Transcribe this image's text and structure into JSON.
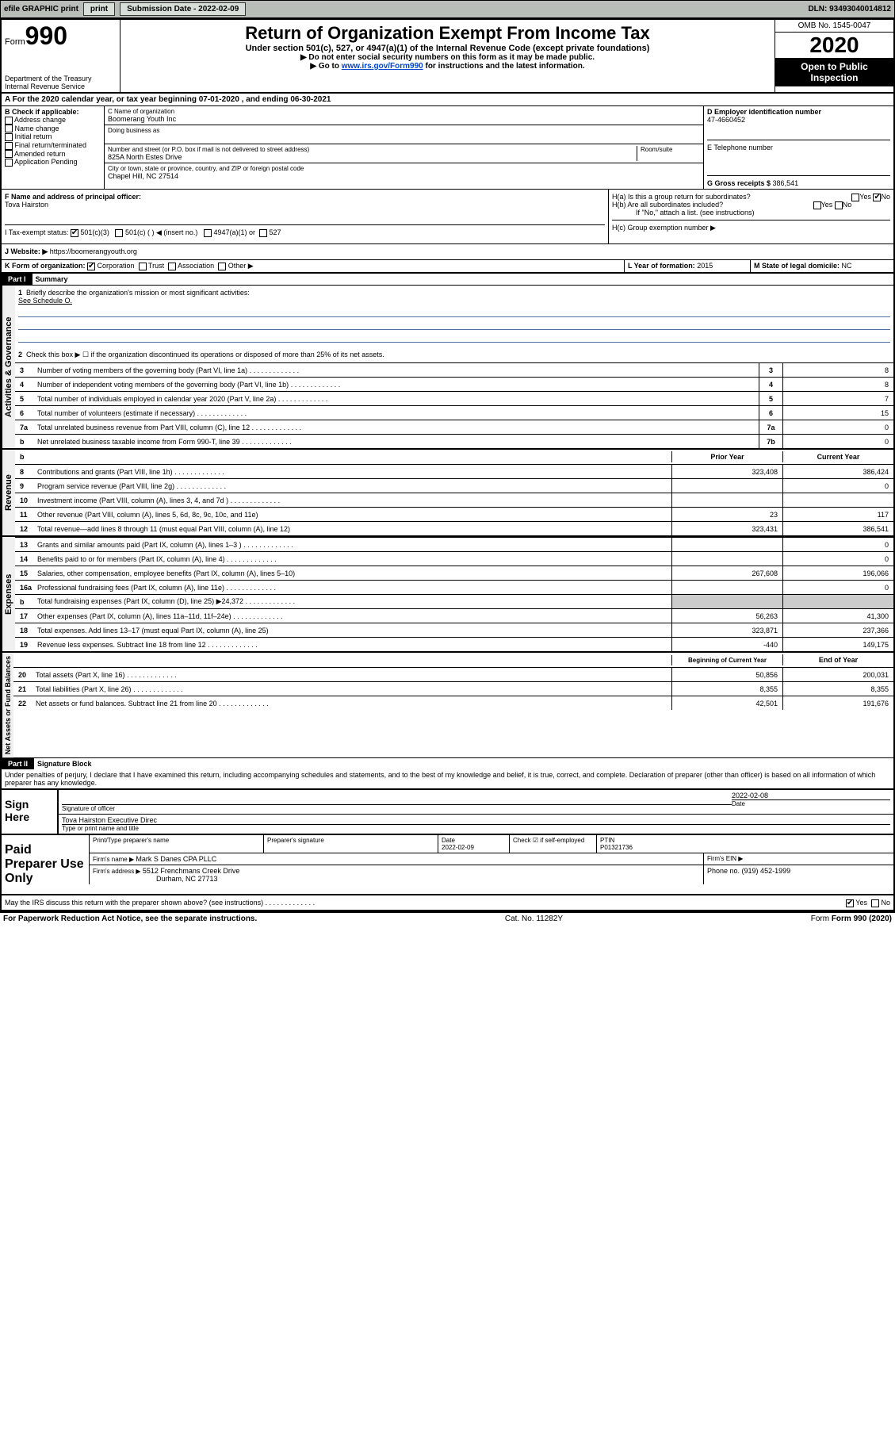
{
  "topbar": {
    "efile": "efile GRAPHIC print",
    "subdate_label": "Submission Date - ",
    "subdate": "2022-02-09",
    "dln_label": "DLN: ",
    "dln": "93493040014812"
  },
  "header": {
    "form_label": "Form",
    "form_num": "990",
    "dept": "Department of the Treasury\nInternal Revenue Service",
    "title": "Return of Organization Exempt From Income Tax",
    "subtitle": "Under section 501(c), 527, or 4947(a)(1) of the Internal Revenue Code (except private foundations)",
    "instruct1": "▶ Do not enter social security numbers on this form as it may be made public.",
    "instruct2_pre": "▶ Go to ",
    "instruct2_link": "www.irs.gov/Form990",
    "instruct2_post": " for instructions and the latest information.",
    "omb": "OMB No. 1545-0047",
    "year": "2020",
    "inspection": "Open to Public Inspection"
  },
  "row_a": "A For the 2020 calendar year, or tax year beginning 07-01-2020   , and ending 06-30-2021",
  "section_b": {
    "label": "B Check if applicable:",
    "opts": [
      "Address change",
      "Name change",
      "Initial return",
      "Final return/terminated",
      "Amended return",
      "Application Pending"
    ]
  },
  "section_c": {
    "name_label": "C Name of organization",
    "name": "Boomerang Youth Inc",
    "dba_label": "Doing business as",
    "street_label": "Number and street (or P.O. box if mail is not delivered to street address)",
    "room_label": "Room/suite",
    "street": "825A North Estes Drive",
    "city_label": "City or town, state or province, country, and ZIP or foreign postal code",
    "city": "Chapel Hill, NC  27514"
  },
  "section_d": {
    "ein_label": "D Employer identification number",
    "ein": "47-4660452",
    "tel_label": "E Telephone number",
    "gross_label": "G Gross receipts $ ",
    "gross": "386,541"
  },
  "section_f": {
    "label": "F  Name and address of principal officer:",
    "name": "Tova Hairston"
  },
  "section_h": {
    "h_a": "H(a)  Is this a group return for subordinates?",
    "h_b": "H(b)  Are all subordinates included?",
    "h_b_note": "If \"No,\" attach a list. (see instructions)",
    "h_c": "H(c)  Group exemption number ▶",
    "yes": "Yes",
    "no": "No"
  },
  "tax_exempt": {
    "label": "I    Tax-exempt status:",
    "opt1": "501(c)(3)",
    "opt2": "501(c) (   ) ◀ (insert no.)",
    "opt3": "4947(a)(1) or",
    "opt4": "527"
  },
  "website": {
    "label": "J   Website: ▶  ",
    "url": "https://boomerangyouth.org"
  },
  "row_k": {
    "label": "K Form of organization:",
    "opts": [
      "Corporation",
      "Trust",
      "Association",
      "Other ▶"
    ],
    "l_label": "L Year of formation: ",
    "l_val": "2015",
    "m_label": "M State of legal domicile: ",
    "m_val": "NC"
  },
  "part1": {
    "header": "Part I",
    "title": "Summary",
    "vert_ag": "Activities & Governance",
    "vert_rev": "Revenue",
    "vert_exp": "Expenses",
    "vert_net": "Net Assets or Fund Balances",
    "line1": "Briefly describe the organization's mission or most significant activities:",
    "line1_val": "See Schedule O.",
    "line2": "Check this box ▶ ☐  if the organization discontinued its operations or disposed of more than 25% of its net assets.",
    "lines": [
      {
        "n": "3",
        "t": "Number of voting members of the governing body (Part VI, line 1a)",
        "box": "3",
        "v": "8"
      },
      {
        "n": "4",
        "t": "Number of independent voting members of the governing body (Part VI, line 1b)",
        "box": "4",
        "v": "8"
      },
      {
        "n": "5",
        "t": "Total number of individuals employed in calendar year 2020 (Part V, line 2a)",
        "box": "5",
        "v": "7"
      },
      {
        "n": "6",
        "t": "Total number of volunteers (estimate if necessary)",
        "box": "6",
        "v": "15"
      },
      {
        "n": "7a",
        "t": "Total unrelated business revenue from Part VIII, column (C), line 12",
        "box": "7a",
        "v": "0"
      },
      {
        "n": "b",
        "t": "Net unrelated business taxable income from Form 990-T, line 39",
        "box": "7b",
        "v": "0"
      }
    ],
    "col_prior": "Prior Year",
    "col_curr": "Current Year",
    "rev_lines": [
      {
        "n": "8",
        "t": "Contributions and grants (Part VIII, line 1h)",
        "p": "323,408",
        "c": "386,424"
      },
      {
        "n": "9",
        "t": "Program service revenue (Part VIII, line 2g)",
        "p": "",
        "c": "0"
      },
      {
        "n": "10",
        "t": "Investment income (Part VIII, column (A), lines 3, 4, and 7d )",
        "p": "",
        "c": ""
      },
      {
        "n": "11",
        "t": "Other revenue (Part VIII, column (A), lines 5, 6d, 8c, 9c, 10c, and 11e)",
        "p": "23",
        "c": "117"
      },
      {
        "n": "12",
        "t": "Total revenue—add lines 8 through 11 (must equal Part VIII, column (A), line 12)",
        "p": "323,431",
        "c": "386,541"
      }
    ],
    "exp_lines": [
      {
        "n": "13",
        "t": "Grants and similar amounts paid (Part IX, column (A), lines 1–3 )",
        "p": "",
        "c": "0"
      },
      {
        "n": "14",
        "t": "Benefits paid to or for members (Part IX, column (A), line 4)",
        "p": "",
        "c": "0"
      },
      {
        "n": "15",
        "t": "Salaries, other compensation, employee benefits (Part IX, column (A), lines 5–10)",
        "p": "267,608",
        "c": "196,066"
      },
      {
        "n": "16a",
        "t": "Professional fundraising fees (Part IX, column (A), line 11e)",
        "p": "",
        "c": "0"
      },
      {
        "n": "b",
        "t": "Total fundraising expenses (Part IX, column (D), line 25) ▶24,372",
        "p": "—",
        "c": "—"
      },
      {
        "n": "17",
        "t": "Other expenses (Part IX, column (A), lines 11a–11d, 11f–24e)",
        "p": "56,263",
        "c": "41,300"
      },
      {
        "n": "18",
        "t": "Total expenses. Add lines 13–17 (must equal Part IX, column (A), line 25)",
        "p": "323,871",
        "c": "237,366"
      },
      {
        "n": "19",
        "t": "Revenue less expenses. Subtract line 18 from line 12",
        "p": "-440",
        "c": "149,175"
      }
    ],
    "col_begin": "Beginning of Current Year",
    "col_end": "End of Year",
    "net_lines": [
      {
        "n": "20",
        "t": "Total assets (Part X, line 16)",
        "p": "50,856",
        "c": "200,031"
      },
      {
        "n": "21",
        "t": "Total liabilities (Part X, line 26)",
        "p": "8,355",
        "c": "8,355"
      },
      {
        "n": "22",
        "t": "Net assets or fund balances. Subtract line 21 from line 20",
        "p": "42,501",
        "c": "191,676"
      }
    ]
  },
  "part2": {
    "header": "Part II",
    "title": "Signature Block",
    "perjury": "Under penalties of perjury, I declare that I have examined this return, including accompanying schedules and statements, and to the best of my knowledge and belief, it is true, correct, and complete. Declaration of preparer (other than officer) is based on all information of which preparer has any knowledge.",
    "sign_here": "Sign Here",
    "sig_officer": "Signature of officer",
    "sig_date": "2022-02-08",
    "date_label": "Date",
    "officer_name": "Tova Hairston Executive Direc",
    "type_label": "Type or print name and title",
    "paid_prep": "Paid Preparer Use Only",
    "prep_name_label": "Print/Type preparer's name",
    "prep_sig_label": "Preparer's signature",
    "prep_date_label": "Date",
    "prep_date": "2022-02-09",
    "check_self": "Check ☑ if self-employed",
    "ptin_label": "PTIN",
    "ptin": "P01321736",
    "firm_name_label": "Firm's name    ▶ ",
    "firm_name": "Mark S Danes CPA PLLC",
    "firm_ein_label": "Firm's EIN ▶",
    "firm_addr_label": "Firm's address ▶ ",
    "firm_addr": "5512 Frenchmans Creek Drive",
    "firm_city": "Durham, NC  27713",
    "phone_label": "Phone no. ",
    "phone": "(919) 452-1999",
    "discuss": "May the IRS discuss this return with the preparer shown above? (see instructions)"
  },
  "footer": {
    "paperwork": "For Paperwork Reduction Act Notice, see the separate instructions.",
    "cat": "Cat. No. 11282Y",
    "form": "Form 990 (2020)"
  }
}
